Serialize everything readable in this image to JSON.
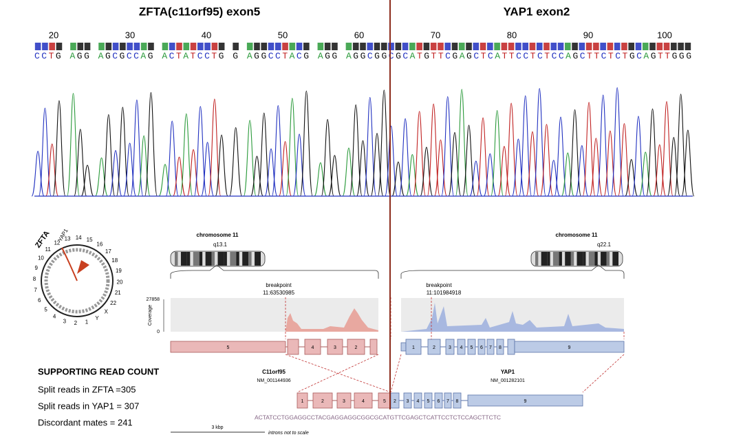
{
  "header": {
    "left_title": "ZFTA(c11orf95) exon5",
    "right_title": "YAP1 exon2"
  },
  "chromatogram": {
    "positions": [
      20,
      30,
      40,
      50,
      60,
      70,
      80,
      90,
      100
    ],
    "sequence": "CCTG AGG AGCGCCAG ACTATCCTG G AGGCCTACG AGG AGGCGGCGCATGTTCGAGCTCATTCCTCTCCAGCTTCTCTGCAGTTGGG"
  },
  "circos": {
    "labels": [
      "12",
      "13",
      "14",
      "15",
      "16",
      "17",
      "18",
      "19",
      "20",
      "21",
      "22",
      "X",
      "Y",
      "1",
      "2",
      "3",
      "4",
      "5",
      "6",
      "7",
      "8",
      "9",
      "10",
      "11"
    ],
    "gene_a": "ZFTA",
    "gene_b": "YAP1"
  },
  "left_panel": {
    "chromosome": "chromosome 11",
    "band": "q13.1",
    "breakpoint": "breakpoint",
    "position": "11:63530985",
    "gene": "C11orf95",
    "transcript": "NM_001144936",
    "exons": [
      "5",
      "4",
      "3",
      "2"
    ]
  },
  "right_panel": {
    "chromosome": "chromosome 11",
    "band": "q22.1",
    "breakpoint": "breakpoint",
    "position": "11:101984918",
    "gene": "YAP1",
    "transcript": "NM_001282101",
    "exons": [
      "1",
      "2",
      "3",
      "4",
      "5",
      "6",
      "7",
      "8",
      "9"
    ]
  },
  "coverage": {
    "label": "Coverage",
    "max": "27858",
    "min": "0"
  },
  "fusion": {
    "exons": [
      "1",
      "2",
      "3",
      "4",
      "5",
      "2",
      "3",
      "4",
      "5",
      "6",
      "7",
      "8",
      "9"
    ],
    "sequence": "ACTATCCTGGAGGCCTACGAGGAGGCGGCGCATGTTCGAGCTCATTCCTCTCCAGCTTCTC"
  },
  "scale": {
    "bar": "3 kbp",
    "note": "introns not to scale"
  },
  "read_counts": {
    "title": "SUPPORTING READ COUNT",
    "lines": [
      "Split reads in   ZFTA =305",
      "Split reads in YAP1 = 307",
      "Discordant mates = 241"
    ]
  }
}
